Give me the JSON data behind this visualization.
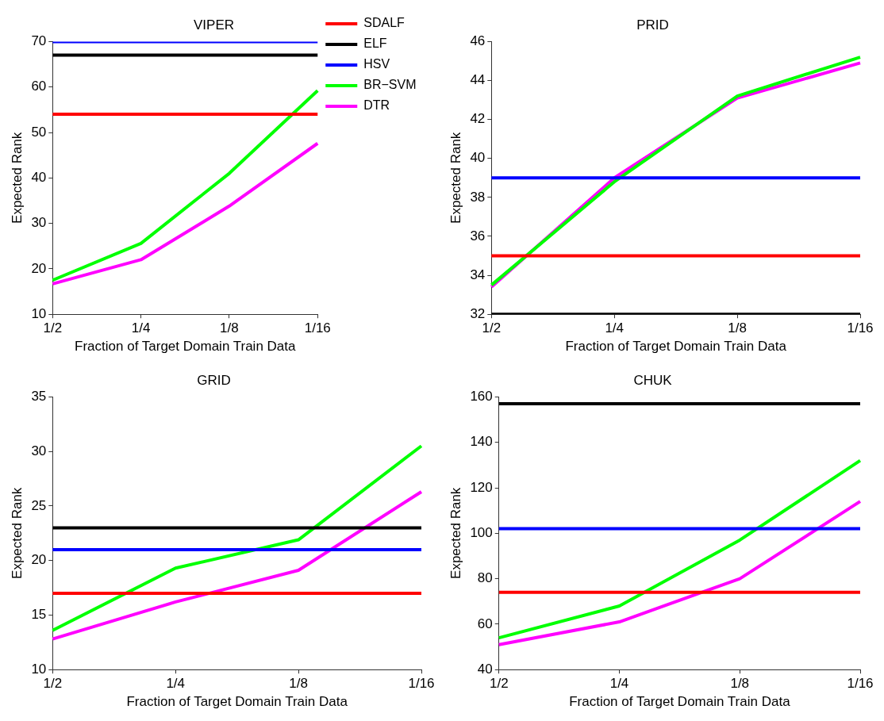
{
  "chart_data": [
    {
      "type": "line",
      "title": "VIPER",
      "xlabel": "Fraction of Target Domain Train Data",
      "ylabel": "Expected Rank",
      "categories": [
        "1/2",
        "1/4",
        "1/8",
        "1/16"
      ],
      "ylim": [
        10,
        70
      ],
      "yticks": [
        10,
        20,
        30,
        40,
        50,
        60,
        70
      ],
      "grid": false,
      "legend": "right",
      "marker": "none",
      "series": [
        {
          "name": "SDALF",
          "color": "#ff0000",
          "values": [
            54,
            54,
            54,
            54
          ]
        },
        {
          "name": "ELF",
          "color": "#000000",
          "values": [
            67,
            67,
            67,
            67
          ]
        },
        {
          "name": "HSV",
          "color": "#0000ff",
          "values": [
            70,
            70,
            70,
            70
          ]
        },
        {
          "name": "BR−SVM",
          "color": "#00ff00",
          "values": [
            17.5,
            25.6,
            41,
            59.2
          ]
        },
        {
          "name": "DTR",
          "color": "#ff00ff",
          "values": [
            16.7,
            22,
            33.8,
            47.6
          ]
        }
      ]
    },
    {
      "type": "line",
      "title": "PRID",
      "xlabel": "Fraction of Target Domain Train Data",
      "ylabel": "Expected Rank",
      "categories": [
        "1/2",
        "1/4",
        "1/8",
        "1/16"
      ],
      "ylim": [
        32,
        46
      ],
      "yticks": [
        32,
        34,
        36,
        38,
        40,
        42,
        44,
        46
      ],
      "grid": false,
      "legend": false,
      "marker": "none",
      "series": [
        {
          "color": "#ff0000",
          "values": [
            35,
            35,
            35,
            35
          ]
        },
        {
          "color": "#000000",
          "values": [
            32,
            32,
            32,
            32
          ]
        },
        {
          "color": "#0000ff",
          "values": [
            39,
            39,
            39,
            39
          ]
        },
        {
          "color": "#00ff00",
          "values": [
            33.5,
            38.8,
            43.2,
            45.2
          ]
        },
        {
          "color": "#ff00ff",
          "values": [
            33.4,
            39,
            43.1,
            44.9
          ]
        }
      ]
    },
    {
      "type": "line",
      "title": "GRID",
      "xlabel": "Fraction of Target Domain Train Data",
      "ylabel": "Expected Rank",
      "categories": [
        "1/2",
        "1/4",
        "1/8",
        "1/16"
      ],
      "ylim": [
        10,
        35
      ],
      "yticks": [
        10,
        15,
        20,
        25,
        30,
        35
      ],
      "grid": false,
      "legend": false,
      "marker": "none",
      "series": [
        {
          "color": "#ff0000",
          "values": [
            17,
            17,
            17,
            17
          ]
        },
        {
          "color": "#000000",
          "values": [
            23,
            23,
            23,
            23
          ]
        },
        {
          "color": "#0000ff",
          "values": [
            21,
            21,
            21,
            21
          ]
        },
        {
          "color": "#00ff00",
          "values": [
            13.6,
            19.3,
            21.9,
            30.5
          ]
        },
        {
          "color": "#ff00ff",
          "values": [
            12.8,
            16.2,
            19.1,
            26.3
          ]
        }
      ]
    },
    {
      "type": "line",
      "title": "CHUK",
      "xlabel": "Fraction of Target Domain Train Data",
      "ylabel": "Expected Rank",
      "categories": [
        "1/2",
        "1/4",
        "1/8",
        "1/16"
      ],
      "ylim": [
        40,
        160
      ],
      "yticks": [
        40,
        60,
        80,
        100,
        120,
        140,
        160
      ],
      "grid": false,
      "legend": false,
      "marker": "none",
      "series": [
        {
          "color": "#ff0000",
          "values": [
            74,
            74,
            74,
            74
          ]
        },
        {
          "color": "#000000",
          "values": [
            157,
            157,
            157,
            157
          ]
        },
        {
          "color": "#0000ff",
          "values": [
            102,
            102,
            102,
            102
          ]
        },
        {
          "color": "#00ff00",
          "values": [
            54,
            68,
            97,
            132
          ]
        },
        {
          "color": "#ff00ff",
          "values": [
            51,
            61,
            80,
            114
          ]
        }
      ]
    }
  ]
}
